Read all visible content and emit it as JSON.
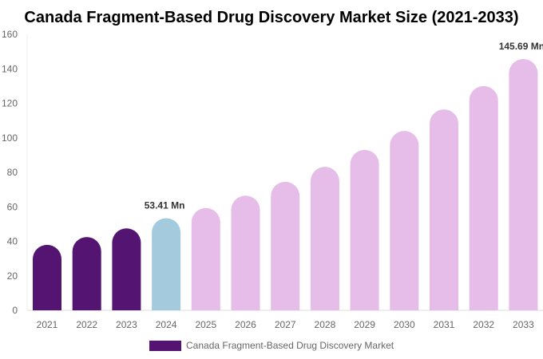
{
  "chart_data": {
    "type": "bar",
    "title": "Canada Fragment-Based Drug Discovery Market Size (2021-2033)",
    "categories": [
      "2021",
      "2022",
      "2023",
      "2024",
      "2025",
      "2026",
      "2027",
      "2028",
      "2029",
      "2030",
      "2031",
      "2032",
      "2033"
    ],
    "series": [
      {
        "name": "Canada Fragment-Based Drug Discovery Market",
        "values": [
          38.0,
          42.5,
          47.5,
          53.41,
          59.3,
          66.5,
          74.5,
          83.2,
          93.0,
          104.0,
          116.5,
          130.0,
          145.69
        ]
      }
    ],
    "data_labels": [
      {
        "index": 3,
        "text": "53.41 Mn"
      },
      {
        "index": 12,
        "text": "145.69 Mn"
      }
    ],
    "ylim": [
      0,
      160
    ],
    "yticks": [
      0,
      20,
      40,
      60,
      80,
      100,
      120,
      140,
      160
    ],
    "grid": false,
    "legend": "bottom",
    "colors": {
      "historical": "#541471",
      "current": "#a4cade",
      "forecast": "#e6bce8"
    }
  }
}
